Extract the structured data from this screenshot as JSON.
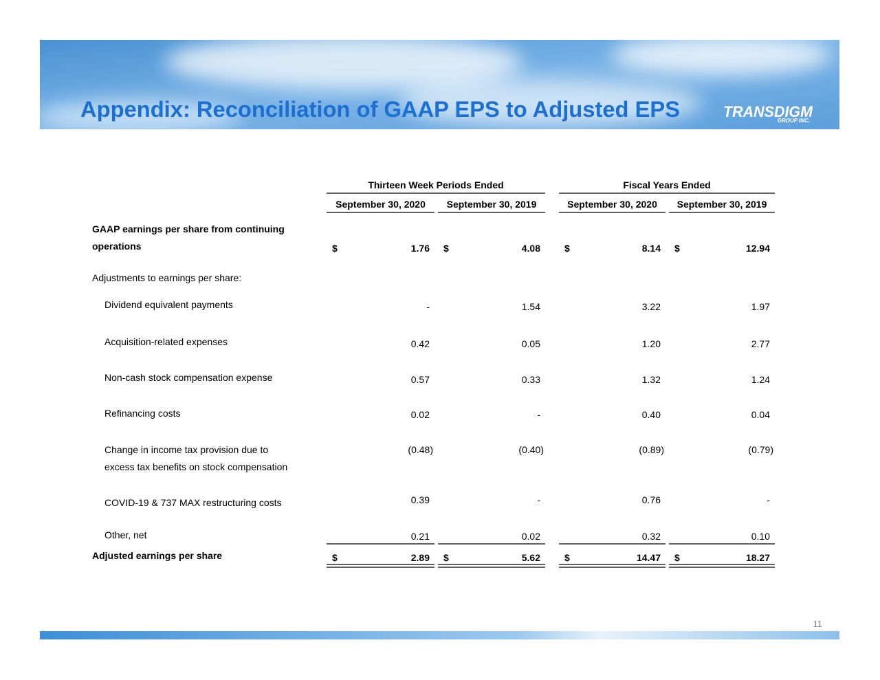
{
  "header": {
    "title": "Appendix: Reconciliation of GAAP EPS to Adjusted EPS",
    "logo": "TRANSDIGM",
    "logo_sub": "GROUP INC."
  },
  "table": {
    "group_headers": [
      "Thirteen Week Periods Ended",
      "Fiscal Years Ended"
    ],
    "column_headers": [
      "September 30, 2020",
      "September 30, 2019",
      "September 30, 2020",
      "September 30, 2019"
    ],
    "currency": "$",
    "rows": [
      {
        "label": [
          "GAAP earnings per share from continuing",
          "operations"
        ],
        "values": [
          "1.76",
          "4.08",
          "8.14",
          "12.94"
        ]
      },
      {
        "label": [
          "Adjustments to earnings per share:"
        ]
      },
      {
        "label": [
          "Dividend equivalent payments"
        ],
        "values": [
          "-",
          "1.54",
          "3.22",
          "1.97"
        ]
      },
      {
        "label": [
          "Acquisition-related expenses"
        ],
        "values": [
          "0.42",
          "0.05",
          "1.20",
          "2.77"
        ]
      },
      {
        "label": [
          "Non-cash stock compensation expense"
        ],
        "values": [
          "0.57",
          "0.33",
          "1.32",
          "1.24"
        ]
      },
      {
        "label": [
          "Refinancing costs"
        ],
        "values": [
          "0.02",
          "-",
          "0.40",
          "0.04"
        ]
      },
      {
        "label": [
          "Change in income tax provision due to",
          "excess tax benefits on stock compensation"
        ],
        "values": [
          "(0.48)",
          "(0.40)",
          "(0.89)",
          "(0.79)"
        ]
      },
      {
        "label": [
          "COVID-19 & 737 MAX restructuring costs"
        ],
        "values": [
          "0.39",
          "-",
          "0.76",
          "-"
        ]
      },
      {
        "label": [
          "Other, net"
        ],
        "values": [
          "0.21",
          "0.02",
          "0.32",
          "0.10"
        ]
      },
      {
        "label": [
          "Adjusted earnings per share"
        ],
        "values": [
          "2.89",
          "5.62",
          "14.47",
          "18.27"
        ]
      }
    ]
  },
  "footer": {
    "page_number": "11"
  }
}
